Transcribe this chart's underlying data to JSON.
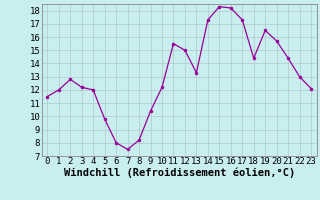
{
  "x": [
    0,
    1,
    2,
    3,
    4,
    5,
    6,
    7,
    8,
    9,
    10,
    11,
    12,
    13,
    14,
    15,
    16,
    17,
    18,
    19,
    20,
    21,
    22,
    23
  ],
  "y": [
    11.5,
    12.0,
    12.8,
    12.2,
    12.0,
    9.8,
    8.0,
    7.5,
    8.2,
    10.4,
    12.2,
    15.5,
    15.0,
    13.3,
    17.3,
    18.3,
    18.2,
    17.3,
    14.4,
    16.5,
    15.7,
    14.4,
    13.0,
    12.1
  ],
  "line_color": "#990099",
  "marker": "o",
  "marker_size": 2.0,
  "bg_color": "#c8eef0",
  "grid_color": "#b0c8c8",
  "xlabel": "Windchill (Refroidissement éolien,°C)",
  "xlabel_fontsize": 7.5,
  "ylim": [
    7,
    18.5
  ],
  "xlim": [
    -0.5,
    23.5
  ],
  "yticks": [
    7,
    8,
    9,
    10,
    11,
    12,
    13,
    14,
    15,
    16,
    17,
    18
  ],
  "xticks": [
    0,
    1,
    2,
    3,
    4,
    5,
    6,
    7,
    8,
    9,
    10,
    11,
    12,
    13,
    14,
    15,
    16,
    17,
    18,
    19,
    20,
    21,
    22,
    23
  ],
  "tick_fontsize": 6.5,
  "spine_color": "#888888"
}
